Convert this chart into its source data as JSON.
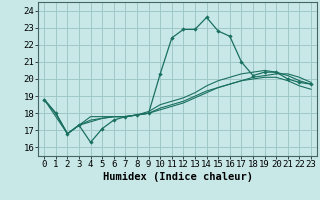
{
  "xlabel": "Humidex (Indice chaleur)",
  "xlim": [
    -0.5,
    23.5
  ],
  "ylim": [
    15.5,
    24.5
  ],
  "yticks": [
    16,
    17,
    18,
    19,
    20,
    21,
    22,
    23,
    24
  ],
  "xticks": [
    0,
    1,
    2,
    3,
    4,
    5,
    6,
    7,
    8,
    9,
    10,
    11,
    12,
    13,
    14,
    15,
    16,
    17,
    18,
    19,
    20,
    21,
    22,
    23
  ],
  "background_color": "#c8e8e8",
  "grid_color": "#a0c8c8",
  "line_color": "#1a7060",
  "line1_x": [
    0,
    1,
    2,
    3,
    4,
    5,
    6,
    7,
    8,
    9,
    10,
    11,
    12,
    13,
    14,
    15,
    16,
    17,
    18,
    19,
    20,
    21,
    22,
    23
  ],
  "line1_y": [
    18.8,
    18.0,
    16.8,
    17.3,
    16.3,
    17.1,
    17.6,
    17.8,
    17.9,
    18.0,
    20.3,
    22.4,
    22.9,
    22.9,
    23.6,
    22.8,
    22.5,
    21.0,
    20.2,
    20.4,
    20.4,
    20.0,
    19.8,
    19.7
  ],
  "line2_x": [
    0,
    1,
    2,
    3,
    4,
    5,
    6,
    7,
    8,
    9,
    10,
    11,
    12,
    13,
    14,
    15,
    16,
    17,
    18,
    19,
    20,
    21,
    22,
    23
  ],
  "line2_y": [
    18.8,
    18.0,
    16.8,
    17.3,
    17.8,
    17.8,
    17.8,
    17.8,
    17.9,
    18.1,
    18.5,
    18.7,
    18.9,
    19.2,
    19.6,
    19.9,
    20.1,
    20.3,
    20.4,
    20.5,
    20.4,
    20.2,
    19.9,
    19.7
  ],
  "line3_x": [
    0,
    2,
    3,
    4,
    5,
    6,
    7,
    8,
    9,
    10,
    11,
    12,
    13,
    14,
    15,
    16,
    17,
    18,
    19,
    20,
    21,
    22,
    23
  ],
  "line3_y": [
    18.8,
    16.8,
    17.3,
    17.6,
    17.7,
    17.8,
    17.8,
    17.9,
    18.0,
    18.2,
    18.4,
    18.6,
    18.9,
    19.2,
    19.5,
    19.7,
    19.9,
    20.1,
    20.2,
    20.3,
    20.3,
    20.1,
    19.8
  ],
  "line4_x": [
    0,
    1,
    2,
    3,
    4,
    5,
    6,
    7,
    8,
    9,
    10,
    11,
    12,
    13,
    14,
    15,
    16,
    17,
    18,
    19,
    20,
    21,
    22,
    23
  ],
  "line4_y": [
    18.8,
    18.0,
    16.8,
    17.3,
    17.5,
    17.7,
    17.8,
    17.8,
    17.9,
    18.0,
    18.3,
    18.5,
    18.7,
    19.0,
    19.3,
    19.5,
    19.7,
    19.9,
    20.0,
    20.1,
    20.1,
    19.9,
    19.6,
    19.4
  ],
  "font_color": "#000000",
  "tick_fontsize": 6.5,
  "label_fontsize": 7.5
}
